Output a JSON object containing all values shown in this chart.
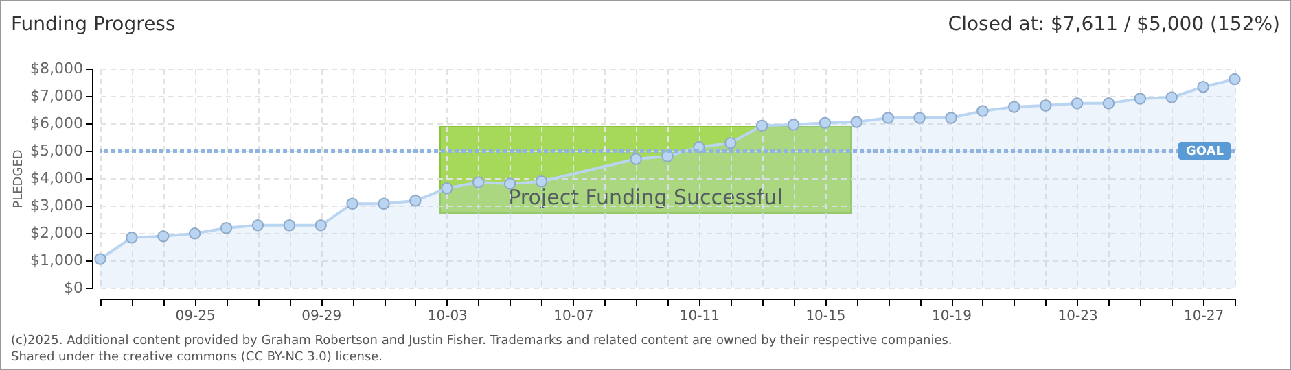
{
  "chart_data": {
    "type": "area",
    "title": "Funding Progress",
    "subtitle": "Closed at: $7,611 / $5,000 (152%)",
    "ylabel": "PLEDGED",
    "x": [
      "--09-22",
      "--09-23",
      "--09-24",
      "--09-25",
      "--09-26",
      "--09-27",
      "--09-28",
      "--09-29",
      "--09-30",
      "--10-01",
      "--10-02",
      "--10-03",
      "--10-04",
      "--10-05",
      "--10-06",
      "--10-07",
      "--10-08",
      "--10-09",
      "--10-10",
      "--10-11",
      "--10-12",
      "--10-13",
      "--10-14",
      "--10-15",
      "--10-16",
      "--10-17",
      "--10-18",
      "--10-19",
      "--10-20",
      "--10-21",
      "--10-22",
      "--10-23",
      "--10-24",
      "--10-25",
      "--10-26",
      "--10-27",
      "--10-28"
    ],
    "series": [
      {
        "color": "#b9d5f2",
        "values": [
          1050,
          1830,
          1880,
          1980,
          2180,
          2280,
          2280,
          2280,
          3070,
          3070,
          3180,
          3630,
          3850,
          3800,
          3880,
          null,
          null,
          4700,
          4800,
          5130,
          5280,
          5920,
          5950,
          6020,
          6050,
          6200,
          6200,
          6200,
          6450,
          6600,
          6650,
          6730,
          6730,
          6900,
          6950,
          7330,
          7611
        ]
      }
    ],
    "marker": "circle",
    "grid": true,
    "xlim": [
      "--09-22",
      "--10-28"
    ],
    "xticks": [
      {
        "value": "--09-22",
        "label": null
      },
      {
        "value": "--09-23",
        "label": null
      },
      {
        "value": "--09-24",
        "label": null
      },
      {
        "value": "--09-25",
        "label": "09-25"
      },
      {
        "value": "--09-26",
        "label": null
      },
      {
        "value": "--09-27",
        "label": null
      },
      {
        "value": "--09-28",
        "label": null
      },
      {
        "value": "--09-29",
        "label": "09-29"
      },
      {
        "value": "--09-30",
        "label": null
      },
      {
        "value": "--10-01",
        "label": null
      },
      {
        "value": "--10-02",
        "label": null
      },
      {
        "value": "--10-03",
        "label": "10-03"
      },
      {
        "value": "--10-04",
        "label": null
      },
      {
        "value": "--10-05",
        "label": null
      },
      {
        "value": "--10-06",
        "label": null
      },
      {
        "value": "--10-07",
        "label": "10-07"
      },
      {
        "value": "--10-08",
        "label": null
      },
      {
        "value": "--10-09",
        "label": null
      },
      {
        "value": "--10-10",
        "label": null
      },
      {
        "value": "--10-11",
        "label": "10-11"
      },
      {
        "value": "--10-12",
        "label": null
      },
      {
        "value": "--10-13",
        "label": null
      },
      {
        "value": "--10-14",
        "label": null
      },
      {
        "value": "--10-15",
        "label": "10-15"
      },
      {
        "value": "--10-16",
        "label": null
      },
      {
        "value": "--10-17",
        "label": null
      },
      {
        "value": "--10-18",
        "label": null
      },
      {
        "value": "--10-19",
        "label": "10-19"
      },
      {
        "value": "--10-20",
        "label": null
      },
      {
        "value": "--10-21",
        "label": null
      },
      {
        "value": "--10-22",
        "label": null
      },
      {
        "value": "--10-23",
        "label": "10-23"
      },
      {
        "value": "--10-24",
        "label": null
      },
      {
        "value": "--10-25",
        "label": null
      },
      {
        "value": "--10-26",
        "label": null
      },
      {
        "value": "--10-27",
        "label": "10-27"
      },
      {
        "value": "--10-28",
        "label": null
      }
    ],
    "ylim": [
      0,
      8000
    ],
    "yticks": [
      {
        "value": 0,
        "label": "$0"
      },
      {
        "value": 1000,
        "label": "$1,000"
      },
      {
        "value": 2000,
        "label": "$2,000"
      },
      {
        "value": 3000,
        "label": "$3,000"
      },
      {
        "value": 4000,
        "label": "$4,000"
      },
      {
        "value": 5000,
        "label": "$5,000"
      },
      {
        "value": 6000,
        "label": "$6,000"
      },
      {
        "value": 7000,
        "label": "$7,000"
      },
      {
        "value": 8000,
        "label": "$8,000"
      }
    ],
    "ref_lines": [
      {
        "axis": "y",
        "value": 5000,
        "label": "GOAL",
        "color": "#8fb4e0",
        "line_style": "dotted"
      }
    ],
    "annotations": [
      "Project Funding Successful",
      "(c)2025. Additional content provided by Graham Robertson and Justin Fisher. Trademarks and related content are owned by their respective companies.",
      "Shared under the creative commons (CC BY-NC 3.0) license."
    ]
  }
}
